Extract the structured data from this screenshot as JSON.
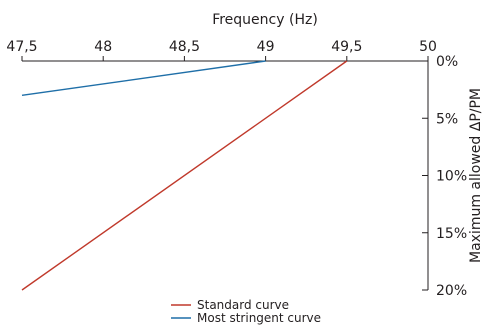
{
  "chart_data": {
    "type": "line",
    "title": "",
    "xlabel": "Frequency (Hz)",
    "ylabel": "Maximum allowed ΔP/PM",
    "x_axis_position": "top",
    "y_axis_position": "right",
    "y_inverted": true,
    "xlim": [
      47.5,
      50
    ],
    "ylim": [
      0,
      20
    ],
    "x_ticks": [
      {
        "value": 47.5,
        "label": "47,5"
      },
      {
        "value": 48,
        "label": "48"
      },
      {
        "value": 48.5,
        "label": "48,5"
      },
      {
        "value": 49,
        "label": "49"
      },
      {
        "value": 49.5,
        "label": "49,5"
      },
      {
        "value": 50,
        "label": "50"
      }
    ],
    "y_ticks": [
      {
        "value": 0,
        "label": "0%"
      },
      {
        "value": 5,
        "label": "5%"
      },
      {
        "value": 10,
        "label": "10%"
      },
      {
        "value": 15,
        "label": "15%"
      },
      {
        "value": 20,
        "label": "20%"
      }
    ],
    "grid": false,
    "legend_position": "bottom-center",
    "series": [
      {
        "name": "Standard curve",
        "color": "#c0392b",
        "points": [
          {
            "x": 47.5,
            "y": 20
          },
          {
            "x": 49.5,
            "y": 0
          }
        ]
      },
      {
        "name": "Most stringent curve",
        "color": "#1f6fa8",
        "points": [
          {
            "x": 47.5,
            "y": 3
          },
          {
            "x": 49,
            "y": 0
          }
        ]
      }
    ]
  }
}
